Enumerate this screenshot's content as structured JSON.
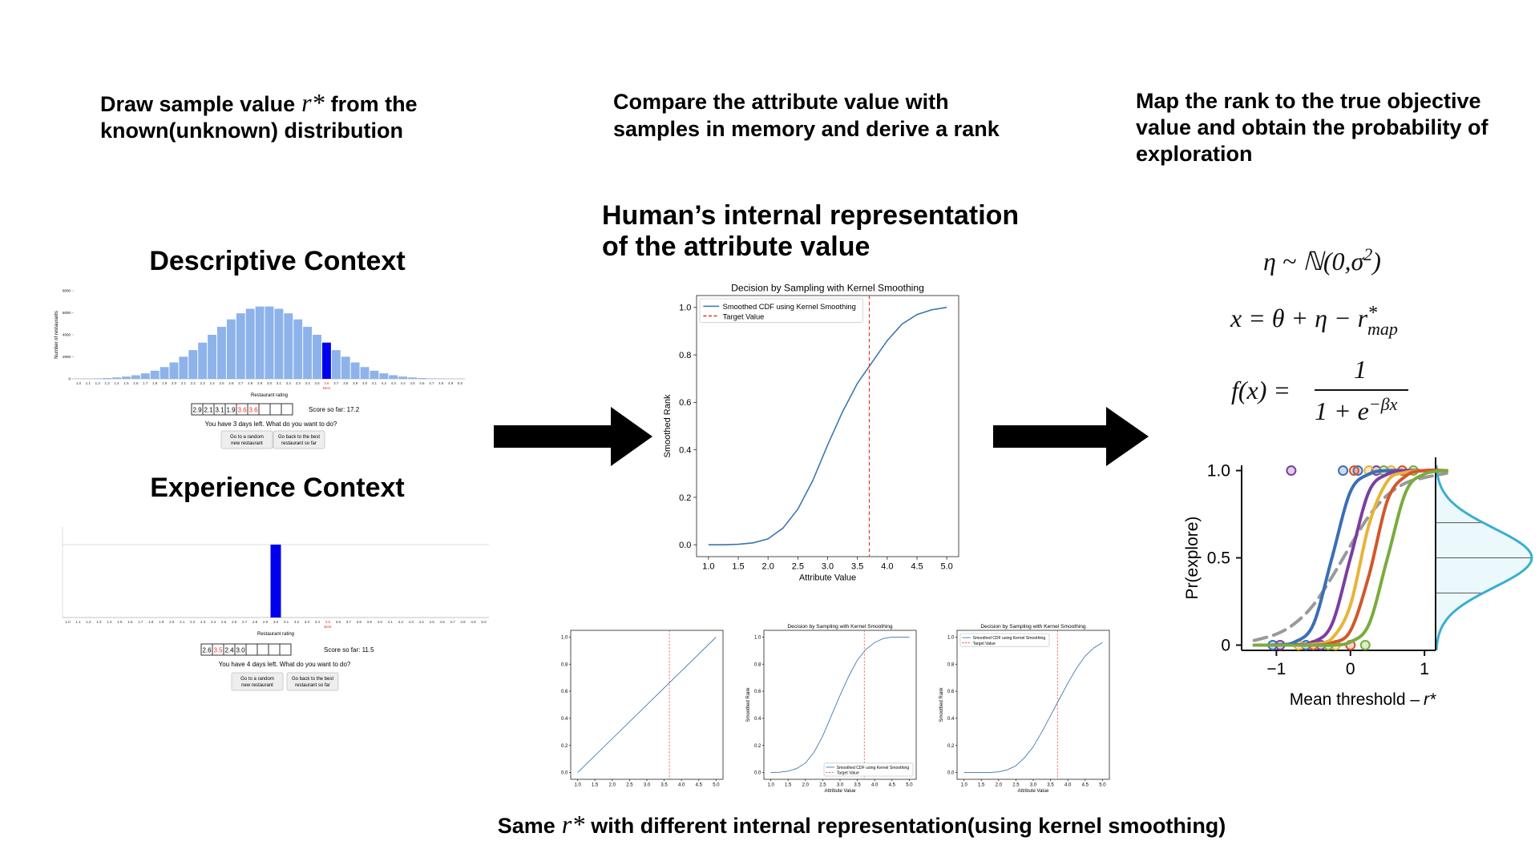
{
  "step1": {
    "title_parts": [
      "Draw sample value",
      "r*",
      "from the"
    ],
    "title_line2": "known(unknown) distribution"
  },
  "step2": {
    "title_lines": [
      "Compare the attribute value with",
      "samples in memory and derive a rank"
    ]
  },
  "step3": {
    "title_lines": [
      "Map the rank to the true objective",
      "value and obtain the probability of",
      "exploration"
    ]
  },
  "descriptive": {
    "title": "Descriptive Context",
    "y_label": "Number of restaurants",
    "x_label": "Restaurant rating",
    "categories": [
      "1.0",
      "1.1",
      "1.2",
      "1.3",
      "1.4",
      "1.5",
      "1.6",
      "1.7",
      "1.8",
      "1.9",
      "2.0",
      "2.1",
      "2.2",
      "2.3",
      "2.4",
      "2.5",
      "2.6",
      "2.7",
      "2.8",
      "2.9",
      "3.0",
      "3.1",
      "3.2",
      "3.3",
      "3.4",
      "3.5",
      "3.6",
      "3.7",
      "3.8",
      "3.9",
      "4.0",
      "4.1",
      "4.2",
      "4.3",
      "4.4",
      "4.5",
      "4.6",
      "4.7",
      "4.8",
      "4.9",
      "5.0"
    ],
    "values": [
      12,
      23,
      42,
      73,
      125,
      206,
      326,
      500,
      740,
      1070,
      1490,
      2010,
      2610,
      3290,
      4000,
      4720,
      5400,
      5950,
      6360,
      6570,
      6570,
      6360,
      5950,
      5400,
      4720,
      4000,
      3290,
      2610,
      2010,
      1490,
      1070,
      740,
      500,
      326,
      206,
      125,
      73,
      42,
      23,
      12,
      7
    ],
    "color": "#8db3ea",
    "highlight_color": "#0000ee",
    "best": "3.6",
    "best_label": "Best",
    "ylim": [
      0,
      8000
    ],
    "yticks": [
      0,
      2000,
      4000,
      6000,
      8000
    ],
    "memory": [
      "2.9",
      "2.1",
      "3.1",
      "1.9",
      "3.6",
      "3.6"
    ],
    "memory_slots": 9,
    "score": "Score so far: 17.2",
    "prompt": "You have 3 days left. What do you want to do?",
    "buttons": [
      [
        "Go to a random",
        "new restaurant"
      ],
      [
        "Go back to the best",
        "restaurant so far"
      ]
    ]
  },
  "experience": {
    "title": "Experience Context",
    "x_label": "Restaurant rating",
    "categories": [
      "1.0",
      "1.1",
      "1.2",
      "1.3",
      "1.4",
      "1.5",
      "1.6",
      "1.7",
      "1.8",
      "1.9",
      "2.0",
      "2.1",
      "2.2",
      "2.3",
      "2.4",
      "2.5",
      "2.6",
      "2.7",
      "2.8",
      "2.9",
      "3.0",
      "3.1",
      "3.2",
      "3.3",
      "3.4",
      "3.5",
      "3.6",
      "3.7",
      "3.8",
      "3.9",
      "4.0",
      "4.1",
      "4.2",
      "4.3",
      "4.4",
      "4.5",
      "4.6",
      "4.7",
      "4.8",
      "4.9",
      "5.0"
    ],
    "sample": "3.0",
    "color": "#0000ee",
    "best": "3.5",
    "best_label": "Best",
    "memory": [
      "2.6",
      "3.5",
      "2.4",
      "3.0"
    ],
    "memory_slots": 8,
    "score": "Score so far: 11.5",
    "prompt": "You have 4 days left. What do you want to do?",
    "buttons": [
      [
        "Go to a random",
        "new restaurant"
      ],
      [
        "Go back to the best",
        "restaurant so far"
      ]
    ]
  },
  "main": {
    "heading_lines": [
      "Human’s internal representation",
      "of the attribute value"
    ],
    "title": "Decision by Sampling with Kernel Smoothing",
    "legend": [
      "Smoothed CDF using Kernel Smoothing",
      "Target Value"
    ],
    "legend_loc": "upper left",
    "x_label": "Attribute Value",
    "y_label": "Smoothed Rank",
    "x": [
      1,
      1.25,
      1.5,
      1.75,
      2,
      2.25,
      2.5,
      2.75,
      3,
      3.25,
      3.5,
      3.75,
      4,
      4.25,
      4.5,
      4.75,
      5
    ],
    "values": [
      0,
      0,
      0.002,
      0.008,
      0.025,
      0.07,
      0.15,
      0.27,
      0.42,
      0.56,
      0.68,
      0.77,
      0.86,
      0.93,
      0.97,
      0.99,
      1
    ],
    "target": 3.7,
    "line_color": "#3a75b0",
    "target_color": "#e8322a",
    "xlim": [
      0.8,
      5.2
    ],
    "ylim": [
      -0.05,
      1.05
    ],
    "xticks": [
      {
        "value": 1,
        "label": "1.0"
      },
      1.5,
      {
        "value": 2,
        "label": "2.0"
      },
      2.5,
      {
        "value": 3,
        "label": "3.0"
      },
      3.5,
      {
        "value": 4,
        "label": "4.0"
      },
      4.5,
      {
        "value": 5,
        "label": "5.0"
      }
    ],
    "yticks": [
      {
        "value": 0,
        "label": "0.0"
      },
      0.2,
      0.4,
      0.6,
      0.8,
      {
        "value": 1,
        "label": "1.0"
      }
    ]
  },
  "small": [
    {
      "x": [
        1,
        5
      ],
      "values": [
        0,
        1
      ],
      "target": 3.65,
      "line_color": "#3a75b0",
      "target_color": "#e8322a",
      "xlim": [
        0.8,
        5.2
      ],
      "ylim": [
        -0.05,
        1.05
      ],
      "xticks": [
        {
          "value": 1,
          "label": "1.0"
        },
        1.5,
        {
          "value": 2,
          "label": "2.0"
        },
        2.5,
        {
          "value": 3,
          "label": "3.0"
        },
        3.5,
        {
          "value": 4,
          "label": "4.0"
        },
        4.5,
        {
          "value": 5,
          "label": "5.0"
        }
      ],
      "yticks": [
        {
          "value": 0,
          "label": "0.0"
        },
        0.2,
        0.4,
        0.6,
        0.8,
        {
          "value": 1,
          "label": "1.0"
        }
      ]
    },
    {
      "title": "Decision by Sampling with Kernel Smoothing",
      "legend": [
        "Smoothed CDF using Kernel Smoothing",
        "Target Value"
      ],
      "legend_loc": "lower right",
      "x_label": "Attribute Value",
      "y_label": "Smoothed Rank",
      "x": [
        1,
        1.25,
        1.5,
        1.75,
        2,
        2.25,
        2.5,
        2.75,
        3,
        3.25,
        3.5,
        3.75,
        4,
        4.25,
        4.5,
        4.75,
        5
      ],
      "values": [
        0,
        0.002,
        0.01,
        0.03,
        0.07,
        0.15,
        0.27,
        0.42,
        0.57,
        0.71,
        0.83,
        0.91,
        0.96,
        0.99,
        1,
        1,
        1
      ],
      "target": 3.7,
      "line_color": "#3a75b0",
      "target_color": "#e8322a",
      "xlim": [
        0.8,
        5.2
      ],
      "ylim": [
        -0.05,
        1.05
      ],
      "xticks": [
        {
          "value": 1,
          "label": "1.0"
        },
        1.5,
        {
          "value": 2,
          "label": "2.0"
        },
        2.5,
        {
          "value": 3,
          "label": "3.0"
        },
        3.5,
        {
          "value": 4,
          "label": "4.0"
        },
        4.5,
        {
          "value": 5,
          "label": "5.0"
        }
      ],
      "yticks": [
        {
          "value": 0,
          "label": "0.0"
        },
        0.2,
        0.4,
        0.6,
        0.8,
        {
          "value": 1,
          "label": "1.0"
        }
      ]
    },
    {
      "title": "Decision by Sampling with Kernel Smoothing",
      "legend": [
        "Smoothed CDF using Kernel Smoothing",
        "Target Value"
      ],
      "legend_loc": "upper left",
      "x_label": "Attribute Value",
      "y_label": "Smoothed Rank",
      "x": [
        1,
        1.25,
        1.5,
        1.75,
        2,
        2.25,
        2.5,
        2.75,
        3,
        3.25,
        3.5,
        3.75,
        4,
        4.25,
        4.5,
        4.75,
        5
      ],
      "values": [
        0,
        0,
        0,
        0,
        0.005,
        0.02,
        0.05,
        0.11,
        0.19,
        0.3,
        0.42,
        0.54,
        0.66,
        0.77,
        0.86,
        0.92,
        0.96
      ],
      "target": 3.7,
      "line_color": "#3a75b0",
      "target_color": "#e8322a",
      "xlim": [
        0.8,
        5.2
      ],
      "ylim": [
        -0.05,
        1.05
      ],
      "xticks": [
        {
          "value": 1,
          "label": "1.0"
        },
        1.5,
        {
          "value": 2,
          "label": "2.0"
        },
        2.5,
        {
          "value": 3,
          "label": "3.0"
        },
        3.5,
        {
          "value": 4,
          "label": "4.0"
        },
        4.5,
        {
          "value": 5,
          "label": "5.0"
        }
      ],
      "yticks": [
        {
          "value": 0,
          "label": "0.0"
        },
        0.2,
        0.4,
        0.6,
        0.8,
        {
          "value": 1,
          "label": "1.0"
        }
      ]
    }
  ],
  "formulas": {
    "f1": [
      "η ~ ℕ(0,σ",
      "2",
      ")"
    ],
    "f2": [
      "x = θ + η − r",
      "*",
      "map"
    ],
    "f3": [
      "f(x) =",
      "1",
      "1 + e",
      "−βx"
    ]
  },
  "explore": {
    "y_label": "Pr(explore)",
    "x_label_parts": [
      "Mean threshold –",
      "r*"
    ],
    "xlim": [
      -1.47,
      1.15
    ],
    "ylim": [
      -0.03,
      1.03
    ],
    "xticks": [
      {
        "value": -1,
        "label": "−1"
      },
      0,
      1
    ],
    "yticks": [
      0,
      0.5,
      {
        "value": 1,
        "label": "1.0"
      }
    ],
    "x": [
      -1.3,
      -1,
      -0.75,
      -0.5,
      -0.25,
      0,
      0.25,
      0.5,
      0.75,
      1,
      1.3
    ],
    "series": [
      {
        "color": "#999999",
        "dashed": true,
        "values": [
          0.027,
          0.063,
          0.125,
          0.23,
          0.39,
          0.57,
          0.74,
          0.86,
          0.93,
          0.96,
          0.985
        ]
      },
      {
        "color": "#3b6fb6",
        "values": [
          0,
          0.002,
          0.018,
          0.12,
          0.5,
          0.88,
          0.98,
          1,
          1,
          1,
          1
        ],
        "points_x": [
          -0.1,
          0.1,
          -1.05,
          -0.6
        ],
        "points_y": [
          1,
          1,
          0,
          0
        ]
      },
      {
        "color": "#7b3fa0",
        "values": [
          0,
          0,
          0.002,
          0.018,
          0.12,
          0.5,
          0.88,
          0.98,
          1,
          1,
          1
        ],
        "points_x": [
          -0.8,
          0.35,
          -0.95,
          -0.4
        ],
        "points_y": [
          1,
          1,
          0,
          0
        ]
      },
      {
        "color": "#e8b33a",
        "values": [
          0,
          0,
          0,
          0.005,
          0.039,
          0.23,
          0.69,
          0.94,
          0.99,
          1,
          1
        ],
        "points_x": [
          0.25,
          0.55,
          -0.7,
          -0.2
        ],
        "points_y": [
          1,
          1,
          0,
          0
        ]
      },
      {
        "color": "#d2572a",
        "values": [
          0,
          0,
          0,
          0,
          0.012,
          0.083,
          0.4,
          0.83,
          0.97,
          1,
          1
        ],
        "points_x": [
          0.05,
          0.7,
          -0.5,
          0
        ],
        "points_y": [
          1,
          1,
          0,
          0
        ]
      },
      {
        "color": "#7aab3e",
        "values": [
          0,
          0,
          0,
          0,
          0,
          0.018,
          0.12,
          0.5,
          0.88,
          0.98,
          1
        ],
        "points_x": [
          0.45,
          0.85,
          -0.3,
          0.2
        ],
        "points_y": [
          1,
          1,
          0,
          0
        ]
      }
    ]
  },
  "caption_parts": [
    "Same",
    "r*",
    "with different internal representation(using kernel smoothing)"
  ]
}
